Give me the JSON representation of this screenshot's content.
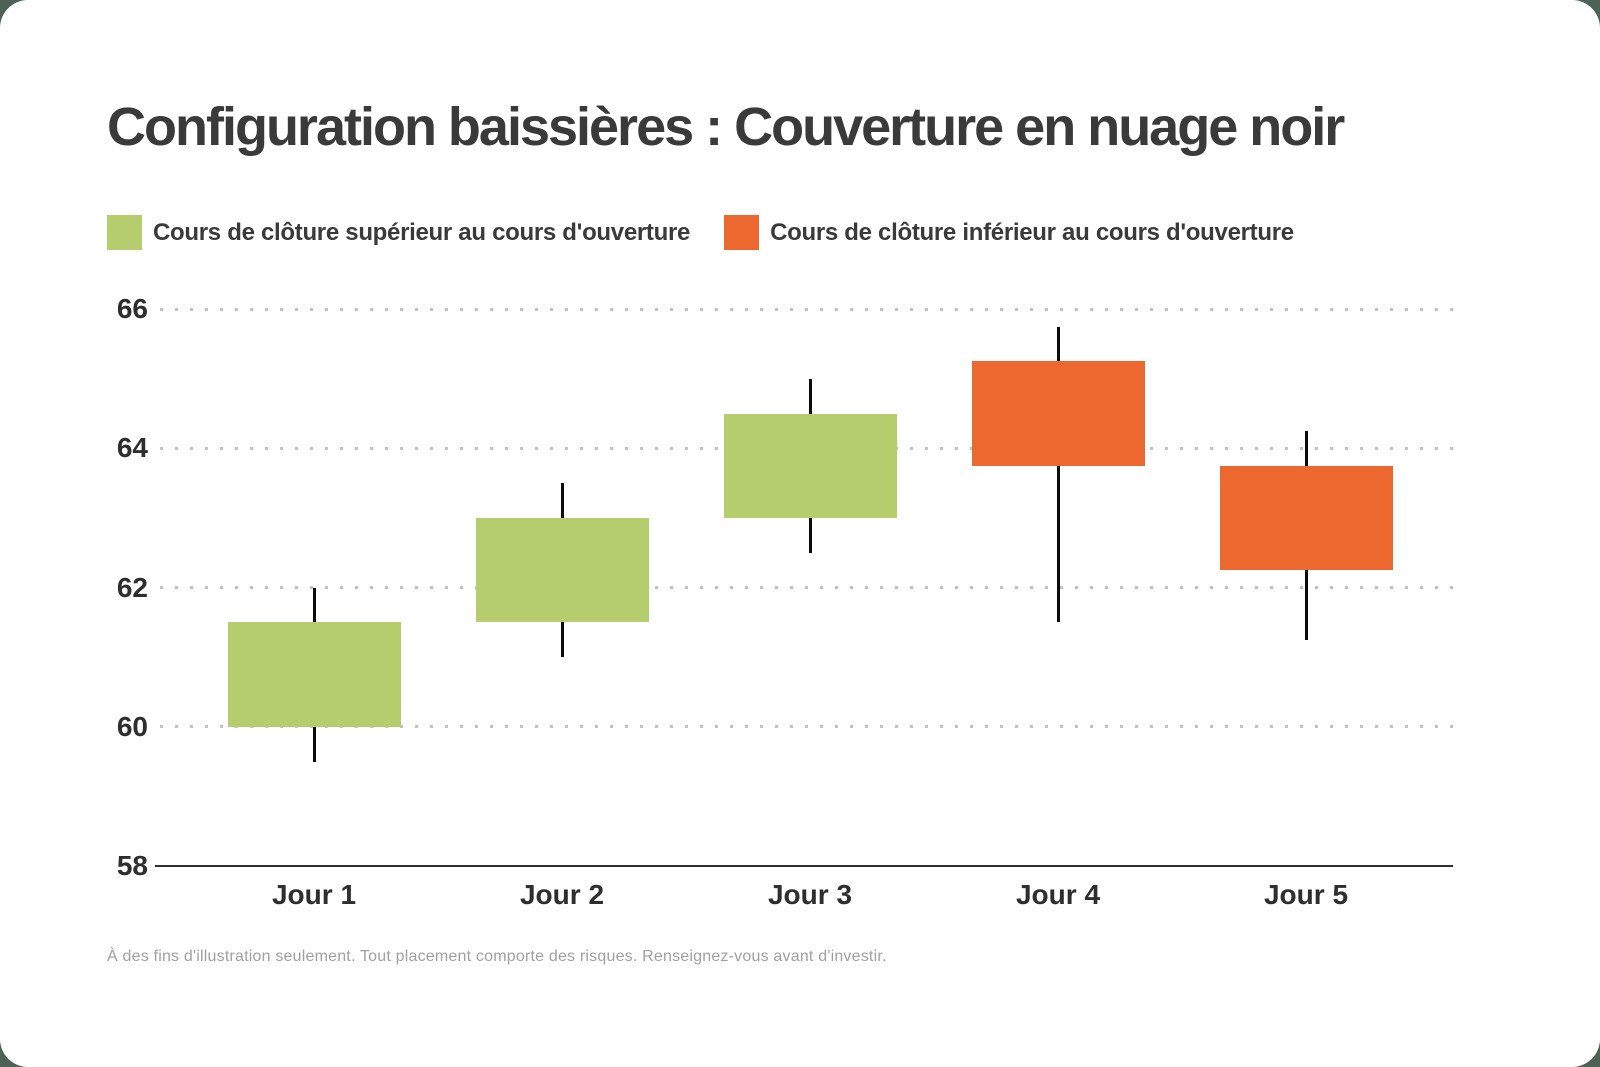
{
  "page": {
    "background_color": "#4b6254",
    "card_color": "#ffffff"
  },
  "title": "Configuration baissières : Couverture en nuage noir",
  "legend": {
    "items": [
      {
        "label": "Cours de clôture supérieur au cours d'ouverture",
        "color": "#b6cd6e",
        "meaning": "bullish-candle"
      },
      {
        "label": "Cours de clôture inférieur au cours d'ouverture",
        "color": "#ed682f",
        "meaning": "bearish-candle"
      }
    ]
  },
  "footnote": "À des fins d'illustration seulement. Tout placement comporte des risques. Renseignez-vous avant d'investir.",
  "chart_data": {
    "type": "candlestick",
    "title": "Configuration baissières : Couverture en nuage noir",
    "categories": [
      "Jour 1",
      "Jour 2",
      "Jour 3",
      "Jour 4",
      "Jour 5"
    ],
    "candles": [
      {
        "label": "Jour 1",
        "open": 60.0,
        "high": 62.0,
        "low": 59.5,
        "close": 61.5,
        "direction": "up"
      },
      {
        "label": "Jour 2",
        "open": 61.5,
        "high": 63.5,
        "low": 61.0,
        "close": 63.0,
        "direction": "up"
      },
      {
        "label": "Jour 3",
        "open": 63.0,
        "high": 65.0,
        "low": 62.5,
        "close": 64.5,
        "direction": "up"
      },
      {
        "label": "Jour 4",
        "open": 65.25,
        "high": 65.75,
        "low": 61.5,
        "close": 63.75,
        "direction": "down"
      },
      {
        "label": "Jour 5",
        "open": 63.75,
        "high": 64.25,
        "low": 61.25,
        "close": 62.25,
        "direction": "down"
      }
    ],
    "yticks": [
      58,
      60,
      62,
      64,
      66
    ],
    "ylim": [
      58,
      66.5
    ],
    "xlabel": "",
    "ylabel": "",
    "grid": "horizontal-dotted",
    "legend_position": "top-left",
    "colors": {
      "up": "#b6cd6e",
      "down": "#ed682f",
      "wick": "#0c0c0c",
      "axis": "#2e2e2e",
      "grid": "#c3c3c3"
    }
  }
}
